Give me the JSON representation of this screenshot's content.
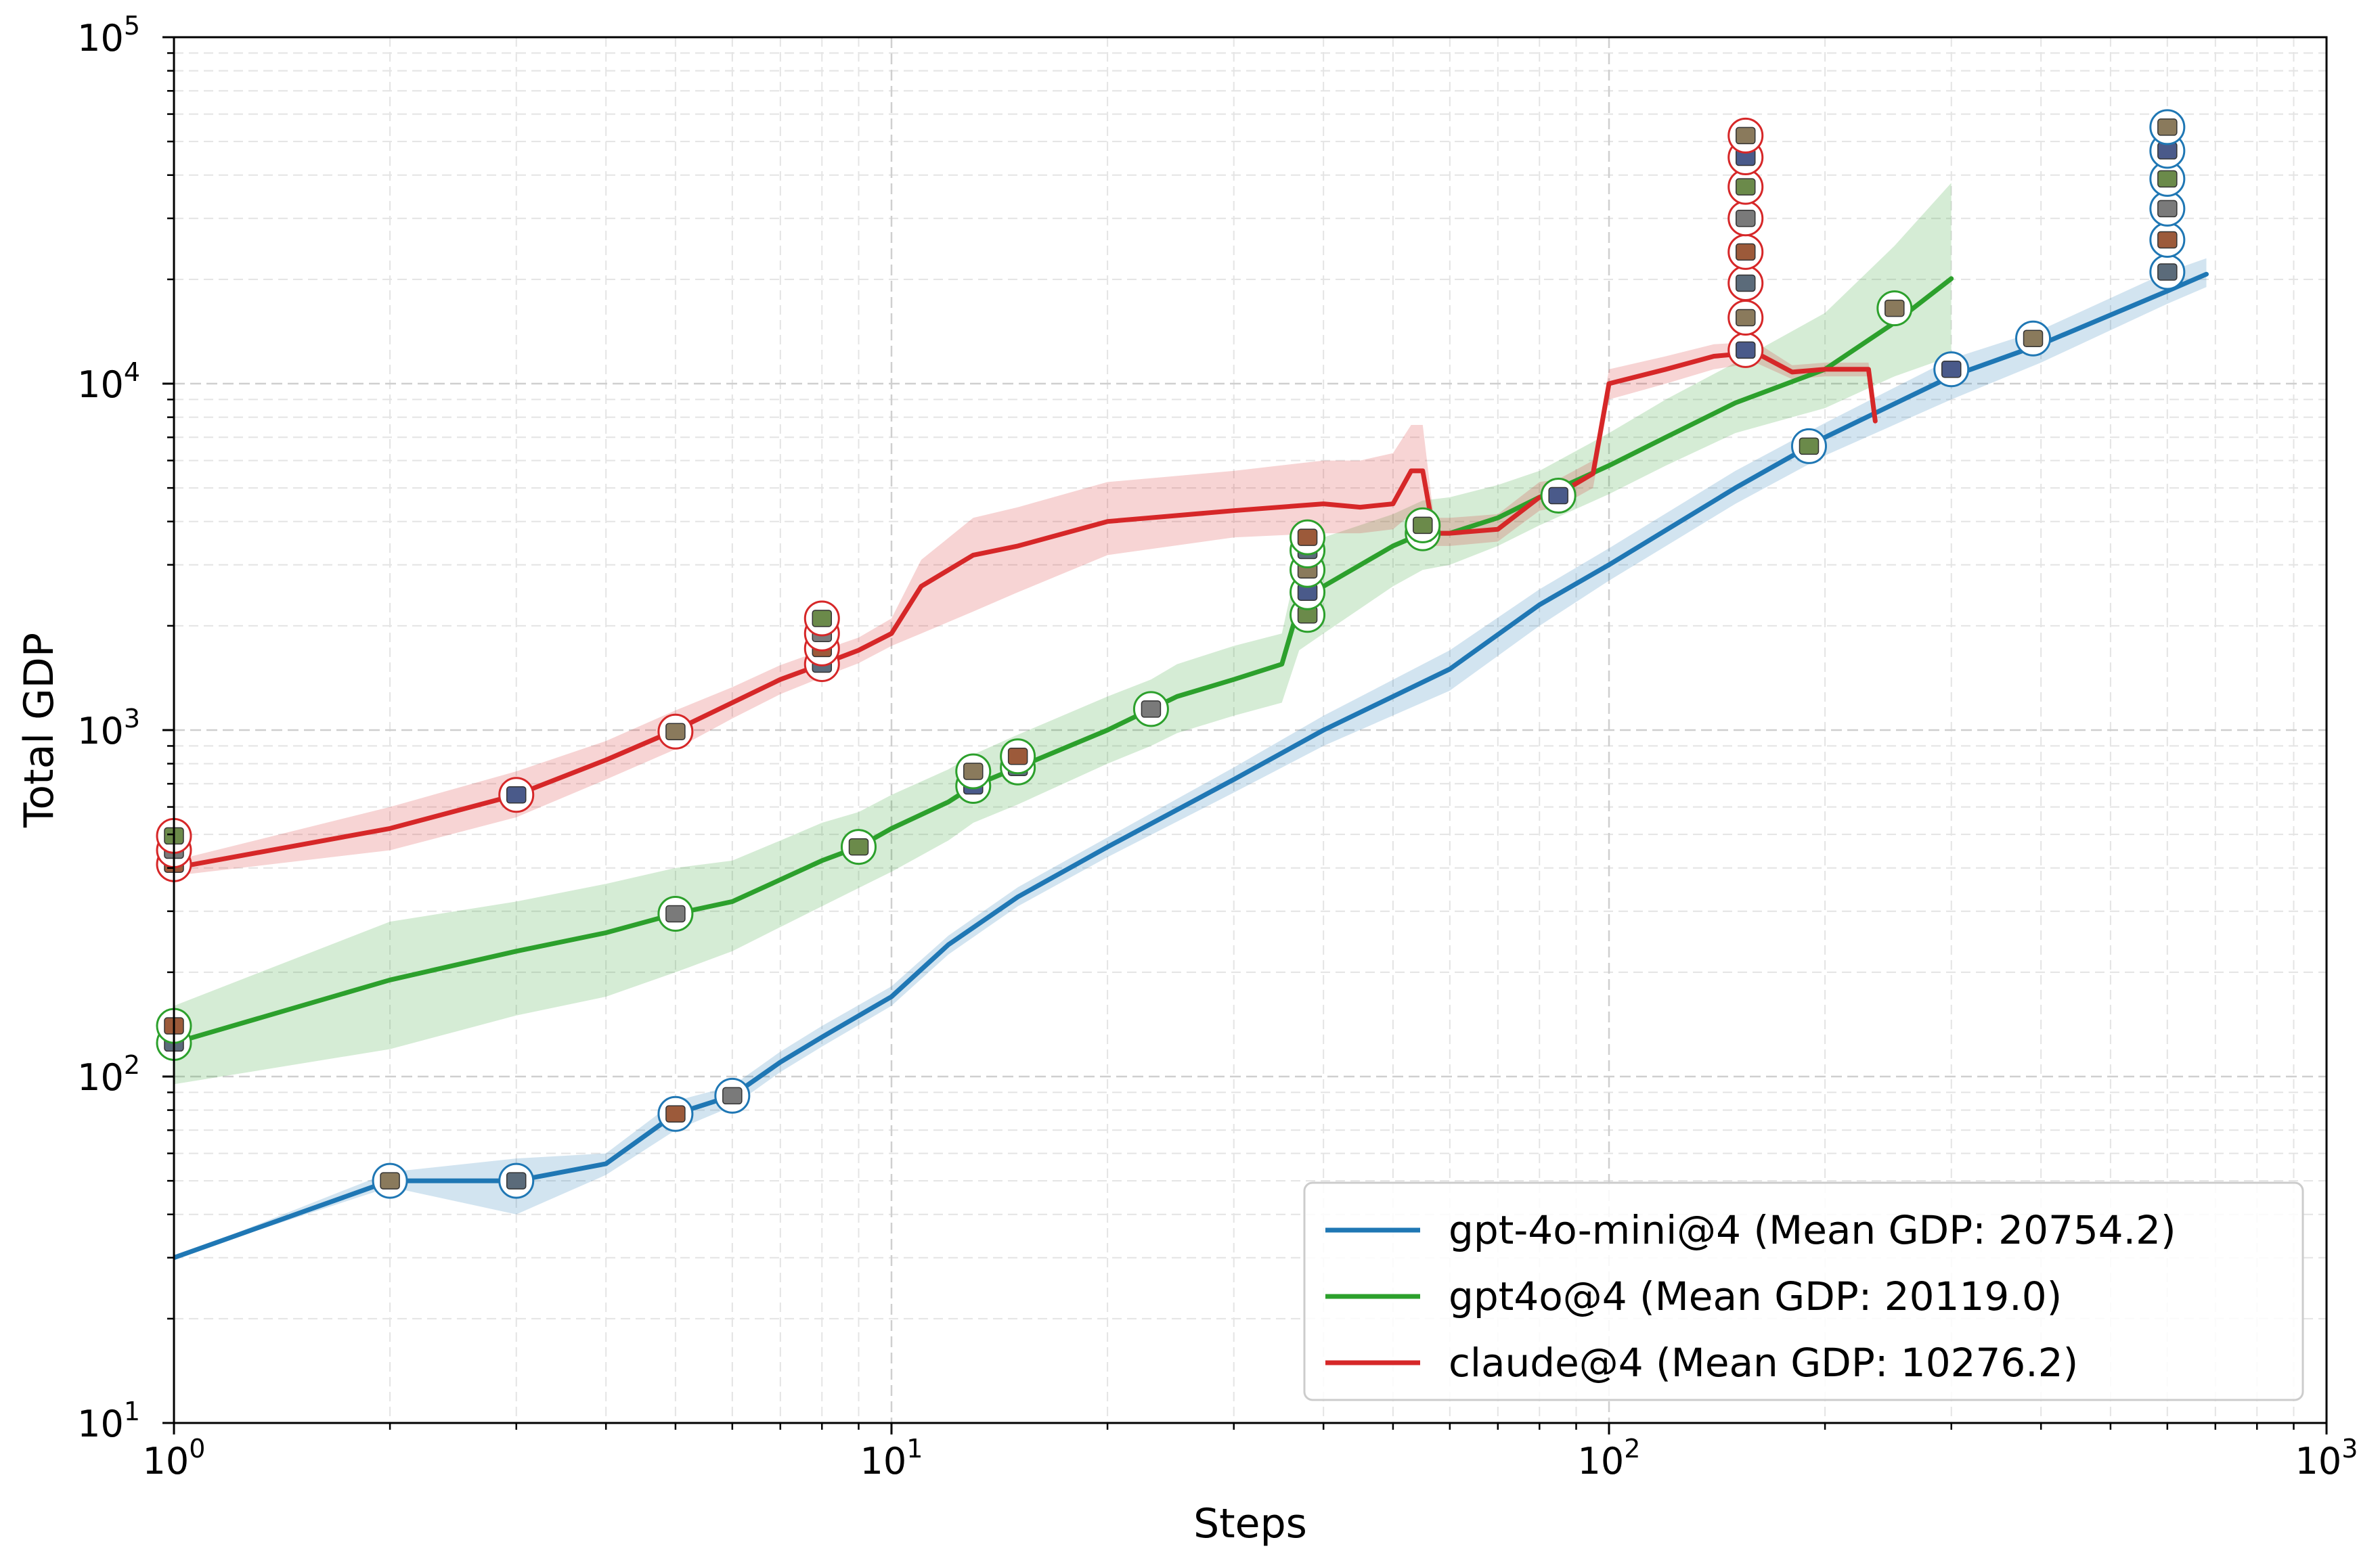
{
  "chart_data": {
    "type": "line",
    "xlabel": "Steps",
    "ylabel": "Total GDP",
    "xscale": "log",
    "yscale": "log",
    "xlim": [
      1,
      1000
    ],
    "ylim": [
      10,
      100000
    ],
    "x_ticks": [
      {
        "base": "10",
        "exp": "0"
      },
      {
        "base": "10",
        "exp": "1"
      },
      {
        "base": "10",
        "exp": "2"
      },
      {
        "base": "10",
        "exp": "3"
      }
    ],
    "y_ticks": [
      {
        "base": "10",
        "exp": "1"
      },
      {
        "base": "10",
        "exp": "2"
      },
      {
        "base": "10",
        "exp": "3"
      },
      {
        "base": "10",
        "exp": "4"
      },
      {
        "base": "10",
        "exp": "5"
      }
    ],
    "grid": true,
    "legend_position": "bottom-right",
    "series": [
      {
        "name": "gpt-4o-mini@4 (Mean GDP: 20754.2)",
        "color": "#1f77b4",
        "x": [
          1,
          2,
          3,
          4,
          5,
          6,
          7,
          8,
          10,
          12,
          15,
          20,
          30,
          40,
          60,
          80,
          100,
          150,
          200,
          300,
          400,
          600,
          680
        ],
        "y": [
          30,
          50,
          50,
          56,
          78,
          88,
          110,
          130,
          170,
          240,
          330,
          460,
          720,
          1000,
          1500,
          2300,
          3000,
          5000,
          7000,
          10500,
          13000,
          18500,
          20700
        ],
        "lower": [
          30,
          48,
          40,
          52,
          70,
          82,
          103,
          122,
          160,
          225,
          310,
          430,
          660,
          900,
          1300,
          2000,
          2700,
          4500,
          6200,
          9000,
          11500,
          17000,
          19000
        ],
        "upper": [
          30,
          53,
          58,
          60,
          85,
          94,
          118,
          140,
          182,
          255,
          352,
          490,
          780,
          1100,
          1700,
          2550,
          3350,
          5600,
          7700,
          11800,
          14300,
          21000,
          23000
        ],
        "markers": [
          {
            "x": 2,
            "y": 50
          },
          {
            "x": 3,
            "y": 50
          },
          {
            "x": 5,
            "y": 78
          },
          {
            "x": 6,
            "y": 88
          },
          {
            "x": 190,
            "y": 6600
          },
          {
            "x": 300,
            "y": 11000
          },
          {
            "x": 390,
            "y": 13500
          },
          {
            "x": 600,
            "y": 21000
          },
          {
            "x": 600,
            "y": 26000
          },
          {
            "x": 600,
            "y": 32000
          },
          {
            "x": 600,
            "y": 39000
          },
          {
            "x": 600,
            "y": 47000
          },
          {
            "x": 600,
            "y": 55000
          }
        ]
      },
      {
        "name": "gpt4o@4 (Mean GDP: 20119.0)",
        "color": "#2ca02c",
        "x": [
          1,
          2,
          3,
          4,
          5,
          6,
          7,
          8,
          9,
          10,
          12,
          13,
          15,
          20,
          23,
          25,
          30,
          35,
          37,
          40,
          50,
          55,
          60,
          70,
          80,
          100,
          120,
          150,
          200,
          250,
          300
        ],
        "y": [
          125,
          190,
          230,
          260,
          295,
          320,
          370,
          420,
          460,
          520,
          620,
          690,
          780,
          1000,
          1150,
          1250,
          1400,
          1550,
          2300,
          2600,
          3400,
          3700,
          3700,
          4100,
          4700,
          5800,
          7000,
          8800,
          11000,
          15000,
          20100
        ],
        "lower": [
          95,
          120,
          150,
          170,
          200,
          230,
          270,
          310,
          350,
          390,
          480,
          540,
          610,
          800,
          900,
          980,
          1100,
          1200,
          1700,
          1900,
          2600,
          2900,
          3000,
          3400,
          3900,
          4800,
          5800,
          7200,
          8500,
          10500,
          12000
        ],
        "upper": [
          160,
          280,
          320,
          360,
          400,
          420,
          480,
          540,
          580,
          650,
          770,
          850,
          970,
          1250,
          1400,
          1550,
          1750,
          1900,
          3200,
          3600,
          4200,
          4600,
          4700,
          5100,
          5600,
          7200,
          9000,
          11500,
          16000,
          25000,
          38000
        ],
        "markers": [
          {
            "x": 1,
            "y": 125
          },
          {
            "x": 1,
            "y": 140
          },
          {
            "x": 5,
            "y": 295
          },
          {
            "x": 9,
            "y": 460
          },
          {
            "x": 13,
            "y": 690
          },
          {
            "x": 13,
            "y": 760
          },
          {
            "x": 15,
            "y": 780
          },
          {
            "x": 15,
            "y": 840
          },
          {
            "x": 23,
            "y": 1150
          },
          {
            "x": 38,
            "y": 2150
          },
          {
            "x": 38,
            "y": 2500
          },
          {
            "x": 38,
            "y": 2900
          },
          {
            "x": 38,
            "y": 3300
          },
          {
            "x": 38,
            "y": 3600
          },
          {
            "x": 55,
            "y": 3700
          },
          {
            "x": 55,
            "y": 3900
          },
          {
            "x": 85,
            "y": 4750
          },
          {
            "x": 250,
            "y": 16500
          }
        ]
      },
      {
        "name": "claude@4 (Mean GDP: 10276.2)",
        "color": "#d62728",
        "x": [
          1,
          2,
          3,
          4,
          5,
          6,
          7,
          8,
          9,
          10,
          11,
          13,
          15,
          20,
          30,
          40,
          45,
          50,
          53,
          55,
          57,
          60,
          70,
          80,
          85,
          95,
          100,
          120,
          140,
          160,
          180,
          200,
          230,
          235
        ],
        "y": [
          400,
          520,
          650,
          820,
          1000,
          1200,
          1400,
          1550,
          1700,
          1900,
          2600,
          3200,
          3400,
          4000,
          4300,
          4500,
          4400,
          4500,
          5600,
          5600,
          3700,
          3700,
          3800,
          4700,
          4800,
          5500,
          10000,
          11000,
          12000,
          12300,
          10800,
          11000,
          11000,
          7800
        ],
        "lower": [
          380,
          450,
          560,
          720,
          880,
          1080,
          1270,
          1420,
          1560,
          1750,
          1900,
          2200,
          2500,
          3200,
          3600,
          3700,
          3700,
          3800,
          4200,
          4200,
          3400,
          3400,
          3500,
          4300,
          4400,
          5000,
          9000,
          10000,
          11000,
          11500,
          10300,
          10500,
          10500,
          7500
        ],
        "upper": [
          420,
          600,
          760,
          930,
          1140,
          1330,
          1540,
          1700,
          1850,
          2100,
          3100,
          4100,
          4400,
          5200,
          5600,
          6000,
          6000,
          6300,
          7600,
          7600,
          4100,
          4100,
          4200,
          5200,
          5300,
          6000,
          11000,
          12000,
          13000,
          13200,
          11300,
          11500,
          11500,
          8200
        ],
        "markers": [
          {
            "x": 1,
            "y": 410
          },
          {
            "x": 1,
            "y": 450
          },
          {
            "x": 1,
            "y": 495
          },
          {
            "x": 3,
            "y": 650
          },
          {
            "x": 5,
            "y": 990
          },
          {
            "x": 8,
            "y": 1550
          },
          {
            "x": 8,
            "y": 1720
          },
          {
            "x": 8,
            "y": 1900
          },
          {
            "x": 8,
            "y": 2100
          },
          {
            "x": 155,
            "y": 12500
          },
          {
            "x": 155,
            "y": 15500
          },
          {
            "x": 155,
            "y": 19500
          },
          {
            "x": 155,
            "y": 24000
          },
          {
            "x": 155,
            "y": 30000
          },
          {
            "x": 155,
            "y": 37000
          },
          {
            "x": 155,
            "y": 45000
          },
          {
            "x": 155,
            "y": 52000
          }
        ]
      }
    ]
  }
}
